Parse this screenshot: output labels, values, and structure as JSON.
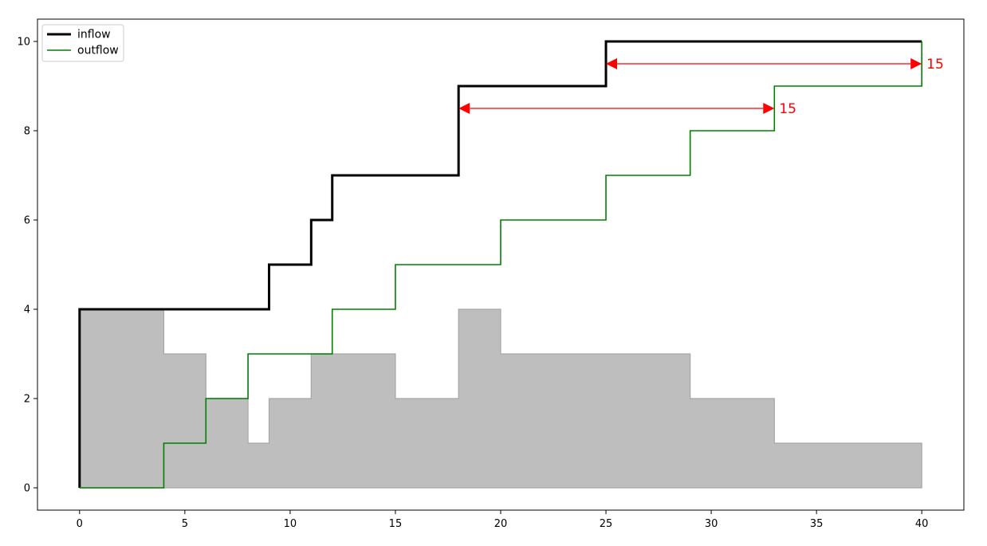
{
  "chart_data": {
    "type": "line",
    "title": "",
    "xlabel": "",
    "ylabel": "",
    "xlim": [
      -2,
      42
    ],
    "ylim": [
      -0.5,
      10.5
    ],
    "xticks": [
      0,
      5,
      10,
      15,
      20,
      25,
      30,
      35,
      40
    ],
    "yticks": [
      0,
      2,
      4,
      6,
      8,
      10
    ],
    "grid": false,
    "legend_position": "top-left",
    "series": [
      {
        "name": "inflow",
        "style": "steps-post",
        "color": "#000000",
        "x": [
          0,
          0,
          9,
          11,
          12,
          18,
          25,
          40
        ],
        "y": [
          0,
          4,
          5,
          6,
          7,
          9,
          10,
          10
        ]
      },
      {
        "name": "outflow",
        "style": "steps-post",
        "color": "#008000",
        "x": [
          0,
          4,
          6,
          8,
          12,
          15,
          20,
          25,
          29,
          33,
          40
        ],
        "y": [
          0,
          1,
          2,
          3,
          4,
          5,
          6,
          7,
          8,
          9,
          10
        ]
      }
    ],
    "fill": {
      "style": "steps-post",
      "color": "#bebebe",
      "edge_color": "#a6a6a6",
      "x": [
        0,
        4,
        6,
        8,
        9,
        11,
        12,
        15,
        18,
        20,
        25,
        29,
        33,
        40
      ],
      "y": [
        4,
        3,
        2,
        1,
        2,
        3,
        3,
        2,
        4,
        3,
        3,
        2,
        1,
        1
      ]
    },
    "annotations": [
      {
        "x_start": 18,
        "x_end": 33,
        "y": 8.5,
        "text": "15",
        "color": "#ff0000"
      },
      {
        "x_start": 25,
        "x_end": 40,
        "y": 9.5,
        "text": "15",
        "color": "#ff0000"
      }
    ]
  }
}
